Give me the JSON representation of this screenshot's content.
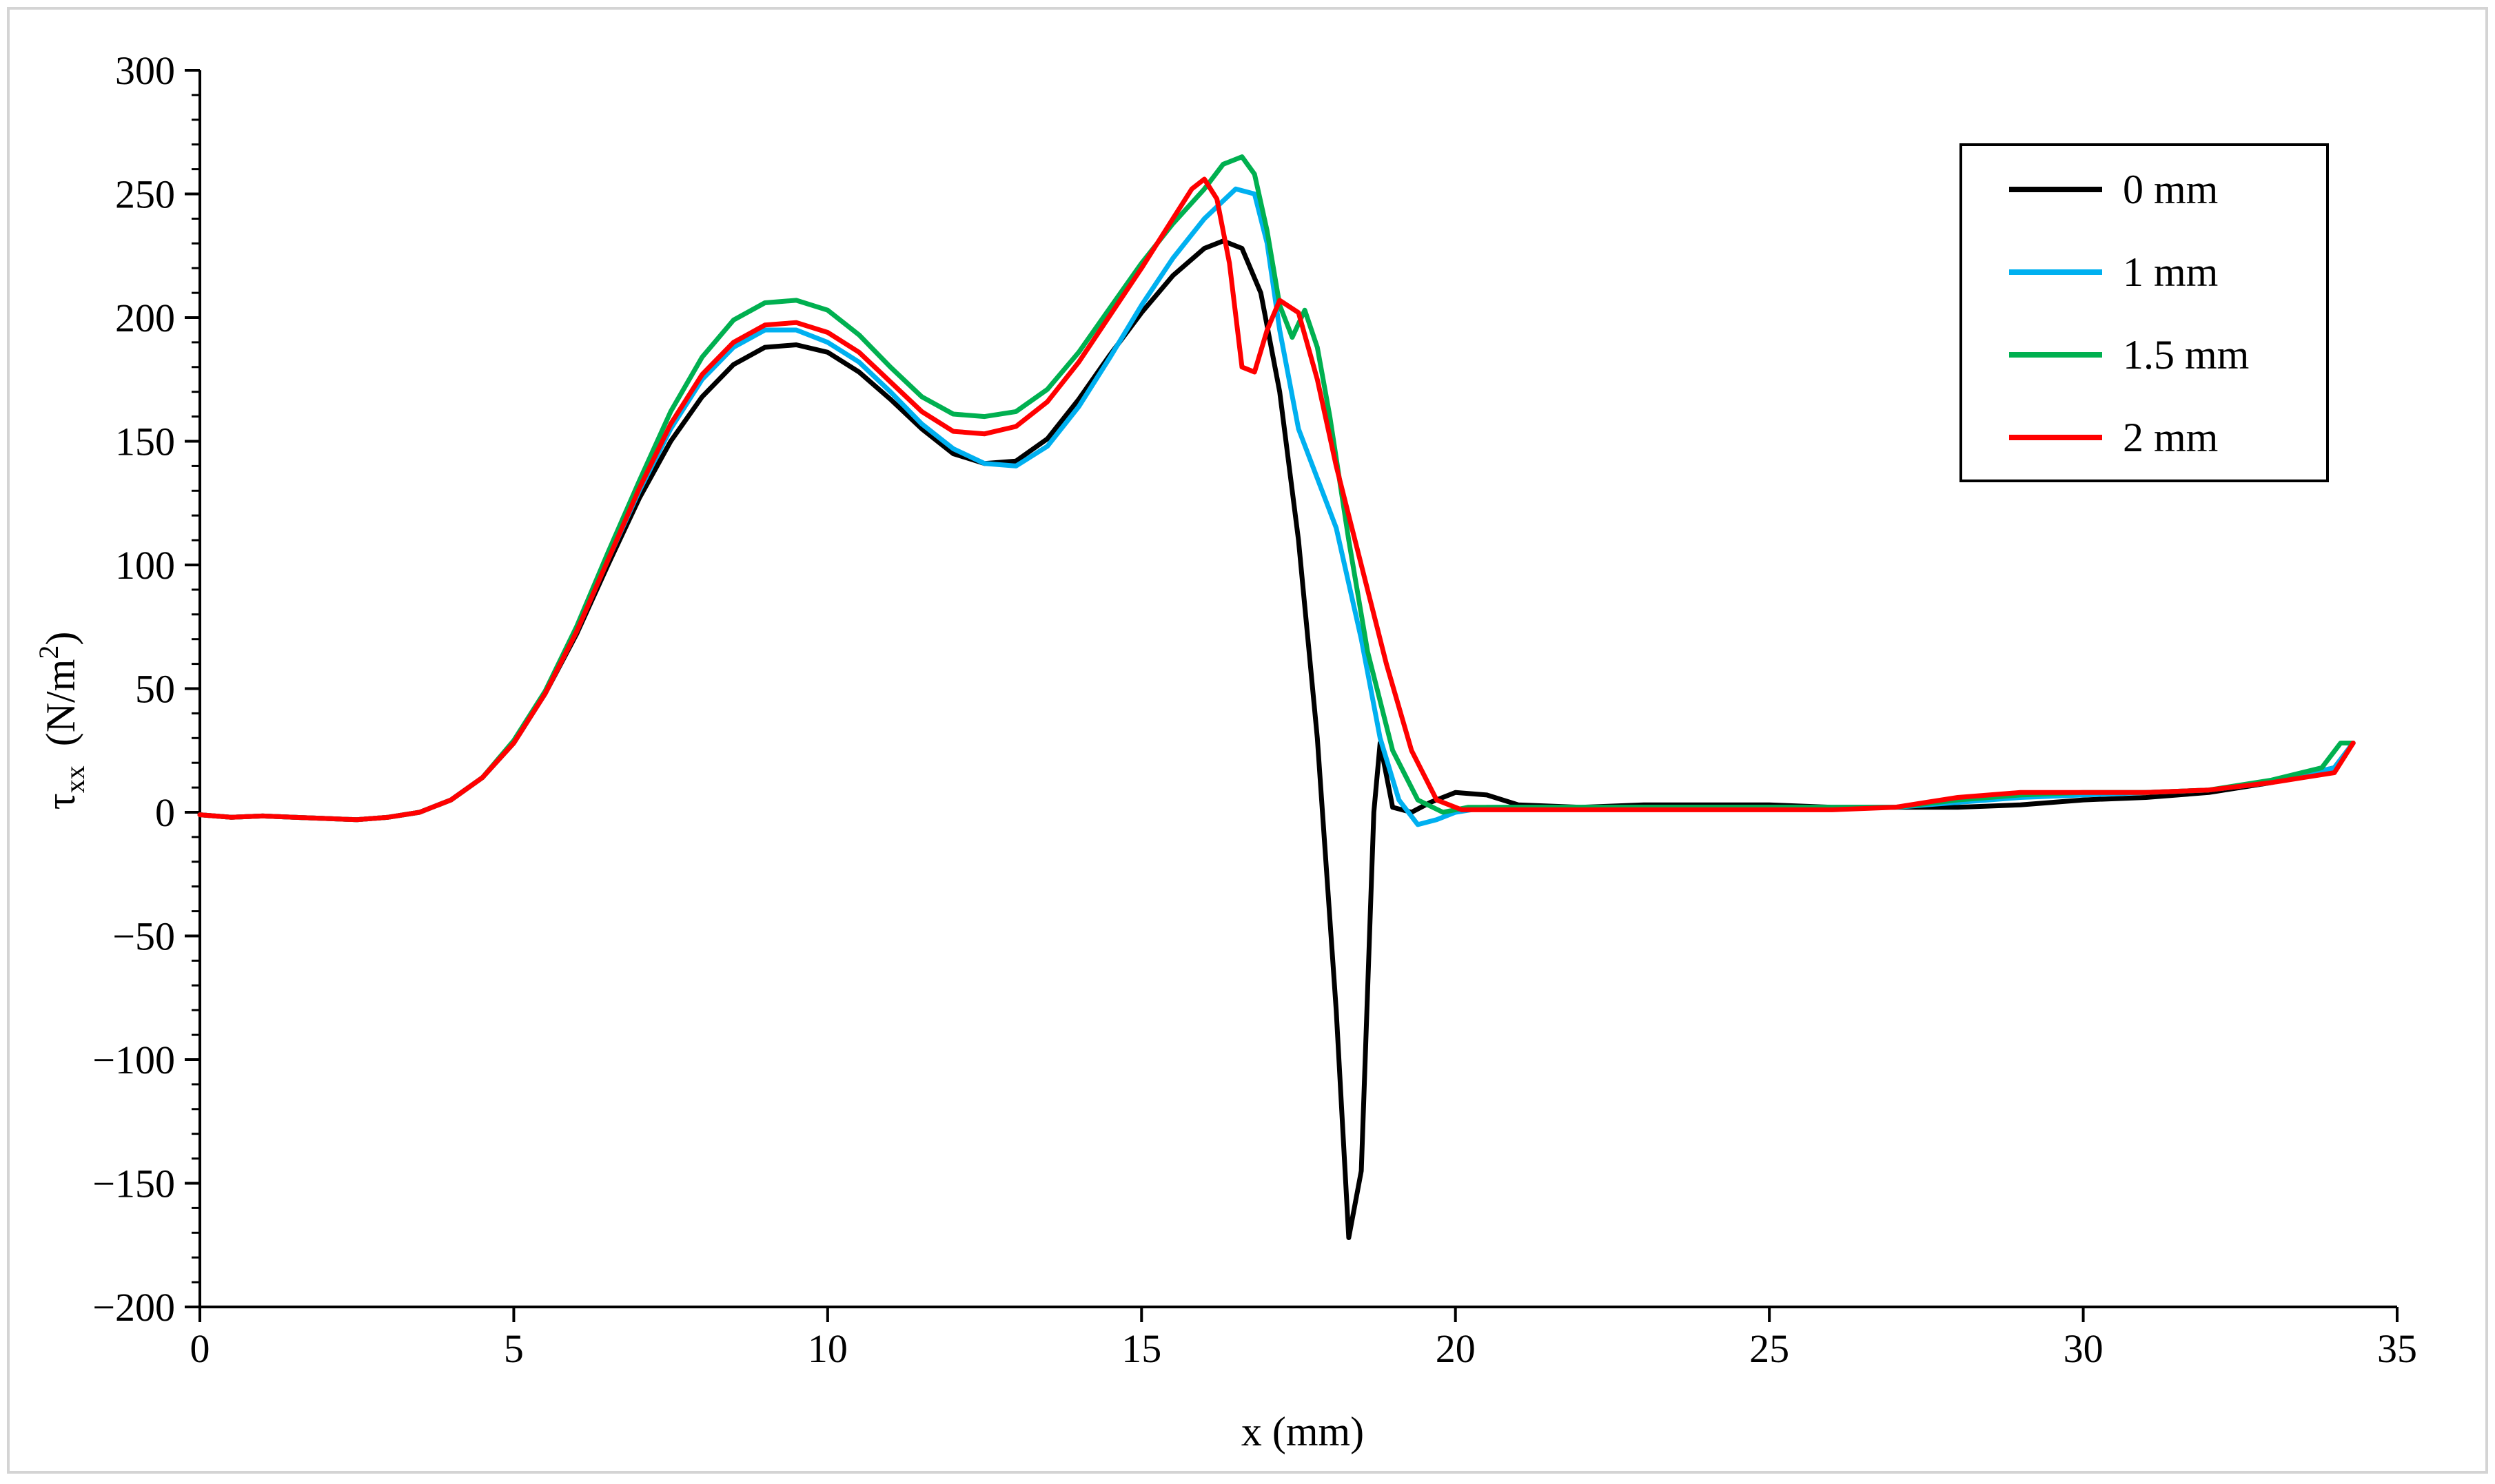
{
  "chart_data": {
    "type": "line",
    "title": "",
    "xlabel": "x (mm)",
    "ylabel": {
      "symbol": "τ",
      "subscript": "xx",
      "unit_prefix": "(N/m",
      "unit_superscript": "2",
      "unit_suffix": ")"
    },
    "xlim": [
      0,
      35
    ],
    "ylim": [
      -200,
      300
    ],
    "xticks": [
      0,
      5,
      10,
      15,
      20,
      25,
      30,
      35
    ],
    "yticks": [
      -200,
      -150,
      -100,
      -50,
      0,
      50,
      100,
      150,
      200,
      250,
      300
    ],
    "xtick_labels": [
      "0",
      "5",
      "10",
      "15",
      "20",
      "25",
      "30",
      "35"
    ],
    "ytick_labels": [
      "−200",
      "−150",
      "−100",
      "−50",
      "0",
      "50",
      "100",
      "150",
      "200",
      "250",
      "300"
    ],
    "grid": false,
    "legend_position": "top-right",
    "series": [
      {
        "name": "0 mm",
        "color": "#000000",
        "x": [
          0,
          0.5,
          1,
          1.5,
          2,
          2.5,
          3,
          3.5,
          4,
          4.5,
          5,
          5.5,
          6,
          6.5,
          7,
          7.5,
          8,
          8.5,
          9,
          9.5,
          10,
          10.5,
          11,
          11.5,
          12,
          12.5,
          13,
          13.5,
          14,
          14.5,
          15,
          15.5,
          16,
          16.3,
          16.6,
          16.9,
          17.2,
          17.5,
          17.8,
          18.1,
          18.3,
          18.5,
          18.7,
          18.8,
          19.0,
          19.3,
          19.6,
          20.0,
          20.5,
          21,
          22,
          23,
          24,
          25,
          26,
          27,
          28,
          29,
          30,
          31,
          32,
          33,
          33.5,
          34,
          34.3
        ],
        "y": [
          -1,
          -2,
          -1.5,
          -2,
          -2.5,
          -3,
          -2,
          0,
          5,
          14,
          28,
          48,
          72,
          100,
          127,
          150,
          168,
          181,
          188,
          189,
          186,
          178,
          167,
          155,
          145,
          141,
          142,
          151,
          167,
          185,
          202,
          217,
          228,
          231,
          228,
          210,
          170,
          110,
          30,
          -80,
          -172,
          -145,
          0,
          28,
          2,
          0,
          4,
          8,
          7,
          3,
          2,
          3,
          3,
          3,
          2,
          2,
          2,
          3,
          5,
          6,
          8,
          12,
          15,
          18,
          28
        ]
      },
      {
        "name": "1 mm",
        "color": "#00b0f0",
        "x": [
          0,
          0.5,
          1,
          1.5,
          2,
          2.5,
          3,
          3.5,
          4,
          4.5,
          5,
          5.5,
          6,
          6.5,
          7,
          7.5,
          8,
          8.5,
          9,
          9.5,
          10,
          10.5,
          11,
          11.5,
          12,
          12.5,
          13,
          13.5,
          14,
          14.5,
          15,
          15.5,
          16,
          16.5,
          16.8,
          17.0,
          17.2,
          17.5,
          17.8,
          18.1,
          18.5,
          18.8,
          19.1,
          19.4,
          19.7,
          20.0,
          20.5,
          21,
          22,
          23,
          24,
          25,
          26,
          27,
          28,
          29,
          30,
          31,
          32,
          33,
          33.5,
          34,
          34.3
        ],
        "y": [
          -1,
          -2,
          -1.5,
          -2,
          -2.5,
          -3,
          -2,
          0,
          5,
          14,
          28,
          48,
          73,
          102,
          130,
          155,
          175,
          188,
          195,
          195,
          190,
          182,
          170,
          157,
          147,
          141,
          140,
          148,
          164,
          184,
          205,
          224,
          240,
          252,
          250,
          230,
          195,
          155,
          135,
          115,
          70,
          30,
          5,
          -5,
          -3,
          0,
          2,
          2,
          2,
          2,
          2,
          2,
          2,
          2,
          4,
          6,
          7,
          8,
          9,
          12,
          15,
          18,
          28
        ]
      },
      {
        "name": "1.5 mm",
        "color": "#00b050",
        "x": [
          0,
          0.5,
          1,
          1.5,
          2,
          2.5,
          3,
          3.5,
          4,
          4.5,
          5,
          5.5,
          6,
          6.5,
          7,
          7.5,
          8,
          8.5,
          9,
          9.5,
          10,
          10.5,
          11,
          11.5,
          12,
          12.5,
          13,
          13.5,
          14,
          14.5,
          15,
          15.5,
          16,
          16.3,
          16.6,
          16.8,
          17.0,
          17.2,
          17.4,
          17.6,
          17.8,
          18.0,
          18.3,
          18.6,
          19.0,
          19.4,
          19.8,
          20.2,
          21,
          22,
          23,
          24,
          25,
          26,
          27,
          28,
          29,
          30,
          31,
          32,
          33,
          33.8,
          34.1,
          34.3
        ],
        "y": [
          -1,
          -2,
          -1.5,
          -2,
          -2.5,
          -3,
          -2,
          0,
          5,
          14,
          29,
          49,
          75,
          105,
          134,
          162,
          184,
          199,
          206,
          207,
          203,
          193,
          180,
          168,
          161,
          160,
          162,
          171,
          186,
          204,
          222,
          238,
          252,
          262,
          265,
          258,
          235,
          205,
          192,
          203,
          188,
          160,
          110,
          65,
          25,
          5,
          0,
          2,
          2,
          2,
          2,
          2,
          2,
          2,
          2,
          5,
          7,
          8,
          8,
          9,
          13,
          18,
          28,
          28
        ]
      },
      {
        "name": "2 mm",
        "color": "#ff0000",
        "x": [
          0,
          0.5,
          1,
          1.5,
          2,
          2.5,
          3,
          3.5,
          4,
          4.5,
          5,
          5.5,
          6,
          6.5,
          7,
          7.5,
          8,
          8.5,
          9,
          9.5,
          10,
          10.5,
          11,
          11.5,
          12,
          12.5,
          13,
          13.5,
          14,
          14.5,
          15,
          15.5,
          15.8,
          16.0,
          16.2,
          16.4,
          16.6,
          16.8,
          17.0,
          17.2,
          17.5,
          17.8,
          18.1,
          18.5,
          18.9,
          19.3,
          19.7,
          20.1,
          20.6,
          21,
          22,
          23,
          24,
          25,
          26,
          27,
          27.5,
          28,
          29,
          30,
          31,
          32,
          33,
          33.5,
          34,
          34.3
        ],
        "y": [
          -1,
          -2,
          -1.5,
          -2,
          -2.5,
          -3,
          -2,
          0,
          5,
          14,
          28,
          48,
          73,
          102,
          131,
          157,
          177,
          190,
          197,
          198,
          194,
          186,
          174,
          162,
          154,
          153,
          156,
          166,
          182,
          201,
          220,
          240,
          252,
          256,
          248,
          222,
          180,
          178,
          195,
          207,
          202,
          175,
          140,
          100,
          60,
          25,
          5,
          1,
          1,
          1,
          1,
          1,
          1,
          1,
          1,
          2,
          4,
          6,
          8,
          8,
          8,
          9,
          12,
          14,
          16,
          28
        ]
      }
    ]
  }
}
